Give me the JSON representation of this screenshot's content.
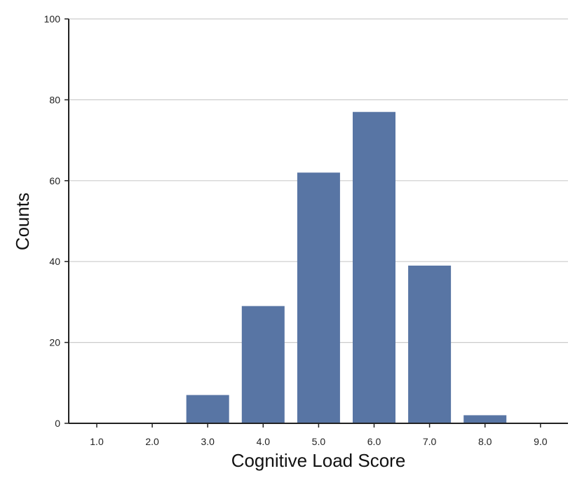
{
  "chart_data": {
    "type": "bar",
    "title": "",
    "xlabel": "Cognitive Load Score",
    "ylabel": "Counts",
    "categories": [
      "1.0",
      "2.0",
      "3.0",
      "4.0",
      "5.0",
      "6.0",
      "7.0",
      "8.0",
      "9.0"
    ],
    "values": [
      0,
      0,
      7,
      29,
      62,
      77,
      39,
      2,
      0
    ],
    "ylim": [
      0,
      100
    ],
    "yticks": [
      "0",
      "20",
      "40",
      "60",
      "80",
      "100"
    ],
    "grid": "horizontal",
    "bar_color": "#5875a4",
    "grid_color": "#cccccc",
    "axis_color": "#222222"
  }
}
